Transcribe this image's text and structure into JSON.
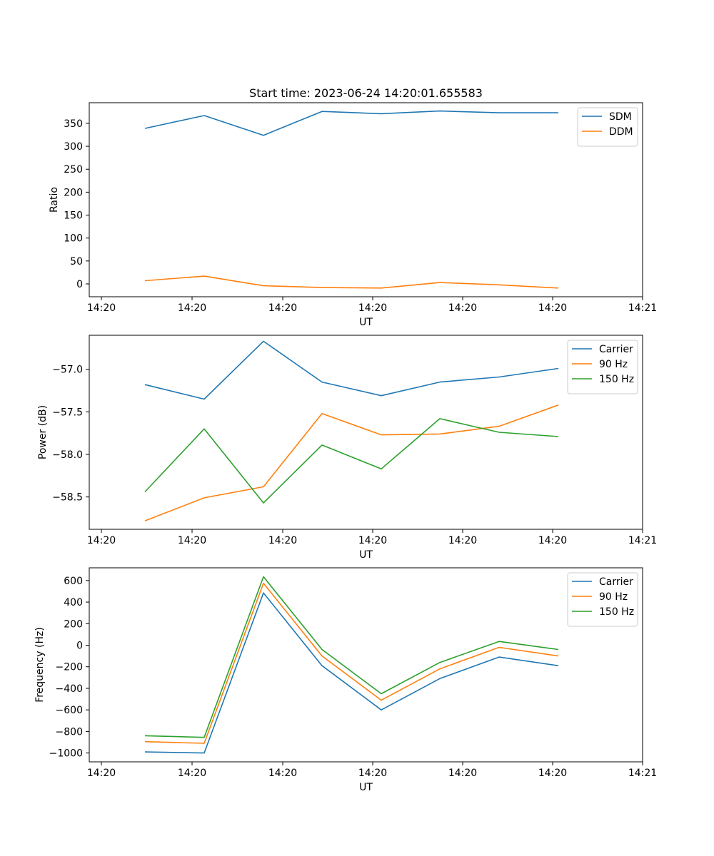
{
  "chart_data": [
    {
      "type": "line",
      "title": "Start time: 2023-06-24 14:20:01.655583",
      "xlabel": "UT",
      "ylabel": "Ratio",
      "x_tick_labels": [
        "14:20",
        "14:20",
        "14:20",
        "14:20",
        "14:20",
        "14:20",
        "14:20",
        "14:21"
      ],
      "y_ticks": [
        0,
        50,
        100,
        150,
        200,
        250,
        300,
        350
      ],
      "ylim": [
        -28,
        395
      ],
      "grid": false,
      "legend_position": "top-right",
      "series": [
        {
          "name": "SDM",
          "color": "#1f77b4",
          "values": [
            339,
            367,
            324,
            376,
            371,
            377,
            373,
            373
          ]
        },
        {
          "name": "DDM",
          "color": "#ff7f0e",
          "values": [
            7,
            17,
            -4,
            -8,
            -9,
            3,
            -2,
            -9
          ]
        }
      ]
    },
    {
      "type": "line",
      "title": "",
      "xlabel": "UT",
      "ylabel": "Power (dB)",
      "x_tick_labels": [
        "14:20",
        "14:20",
        "14:20",
        "14:20",
        "14:20",
        "14:20",
        "14:20",
        "14:21"
      ],
      "y_ticks": [
        -58.5,
        -58.0,
        -57.5,
        -57.0
      ],
      "y_tick_labels": [
        "−58.5",
        "−58.0",
        "−57.5",
        "−57.0"
      ],
      "ylim": [
        -58.88,
        -56.6
      ],
      "grid": false,
      "legend_position": "top-right",
      "series": [
        {
          "name": "Carrier",
          "color": "#1f77b4",
          "values": [
            -57.18,
            -57.35,
            -56.67,
            -57.15,
            -57.31,
            -57.15,
            -57.09,
            -56.99
          ]
        },
        {
          "name": "90 Hz",
          "color": "#ff7f0e",
          "values": [
            -58.78,
            -58.51,
            -58.38,
            -57.52,
            -57.77,
            -57.76,
            -57.67,
            -57.42
          ]
        },
        {
          "name": "150 Hz",
          "color": "#2ca02c",
          "values": [
            -58.44,
            -57.7,
            -58.57,
            -57.89,
            -58.17,
            -57.58,
            -57.74,
            -57.79
          ]
        }
      ]
    },
    {
      "type": "line",
      "title": "",
      "xlabel": "UT",
      "ylabel": "Frequency (Hz)",
      "x_tick_labels": [
        "14:20",
        "14:20",
        "14:20",
        "14:20",
        "14:20",
        "14:20",
        "14:20",
        "14:21"
      ],
      "y_ticks": [
        -1000,
        -800,
        -600,
        -400,
        -200,
        0,
        200,
        400,
        600
      ],
      "y_tick_labels": [
        "−1000",
        "−800",
        "−600",
        "−400",
        "−200",
        "0",
        "200",
        "400",
        "600"
      ],
      "ylim": [
        -1082,
        718
      ],
      "grid": false,
      "legend_position": "top-right",
      "series": [
        {
          "name": "Carrier",
          "color": "#1f77b4",
          "values": [
            -990,
            -1000,
            485,
            -190,
            -600,
            -310,
            -110,
            -190
          ]
        },
        {
          "name": "90 Hz",
          "color": "#ff7f0e",
          "values": [
            -895,
            -910,
            575,
            -100,
            -510,
            -220,
            -20,
            -100
          ]
        },
        {
          "name": "150 Hz",
          "color": "#2ca02c",
          "values": [
            -840,
            -855,
            635,
            -40,
            -450,
            -160,
            35,
            -40
          ]
        }
      ]
    }
  ]
}
